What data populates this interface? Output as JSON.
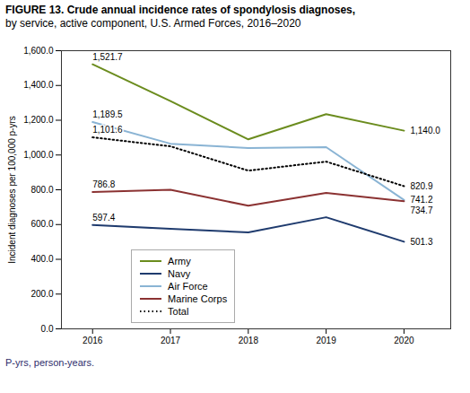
{
  "chart_data": {
    "type": "line",
    "title": "FIGURE 13. Crude annual incidence rates of spondylosis diagnoses,",
    "subtitle": "by service, active component, U.S. Armed Forces, 2016–2020",
    "ylabel": "Incident diagnoses per 100,000 p-yrs",
    "caption": "P-yrs, person-years.",
    "x": [
      2016,
      2017,
      2018,
      2019,
      2020
    ],
    "xlim": [
      2015.6,
      2020.6
    ],
    "xticks": [
      2016,
      2017,
      2018,
      2019,
      2020
    ],
    "ylim": [
      0,
      1600
    ],
    "yticks": [
      {
        "value": 0,
        "label": "0.0"
      },
      {
        "value": 200,
        "label": "200.0"
      },
      {
        "value": 400,
        "label": "400.0"
      },
      {
        "value": 600,
        "label": "600.0"
      },
      {
        "value": 800,
        "label": "800.0"
      },
      {
        "value": 1000,
        "label": "1,000.0"
      },
      {
        "value": 1200,
        "label": "1,200.0"
      },
      {
        "value": 1400,
        "label": "1,400.0"
      },
      {
        "value": 1600,
        "label": "1,600.0"
      }
    ],
    "grid": false,
    "legend": "lower left",
    "data_labels": true,
    "series": [
      {
        "name": "Army",
        "color": "#6b8c1e",
        "line_style": "solid",
        "values": [
          1521.7,
          1310.0,
          1090.0,
          1235.0,
          1140.0
        ],
        "value_labels": [
          "1,521.7",
          null,
          null,
          null,
          "1,140.0"
        ]
      },
      {
        "name": "Navy",
        "color": "#1f3b6e",
        "line_style": "solid",
        "values": [
          597.4,
          575.0,
          555.0,
          642.0,
          501.3
        ],
        "value_labels": [
          "597.4",
          null,
          null,
          null,
          "501.3"
        ]
      },
      {
        "name": "Air Force",
        "color": "#8ab4d4",
        "line_style": "solid",
        "values": [
          1189.5,
          1065.0,
          1040.0,
          1045.0,
          741.2
        ],
        "value_labels": [
          "1,189.5",
          null,
          null,
          null,
          "741.2"
        ]
      },
      {
        "name": "Marine Corps",
        "color": "#8b3232",
        "line_style": "solid",
        "values": [
          786.8,
          800.0,
          708.0,
          782.0,
          734.7
        ],
        "value_labels": [
          "786.8",
          null,
          null,
          null,
          "734.7"
        ]
      },
      {
        "name": "Total",
        "color": "#000000",
        "line_style": "dotted",
        "values": [
          1101.6,
          1050.0,
          910.0,
          962.0,
          820.9
        ],
        "value_labels": [
          "1,101.6",
          null,
          null,
          null,
          "820.9"
        ]
      }
    ]
  }
}
